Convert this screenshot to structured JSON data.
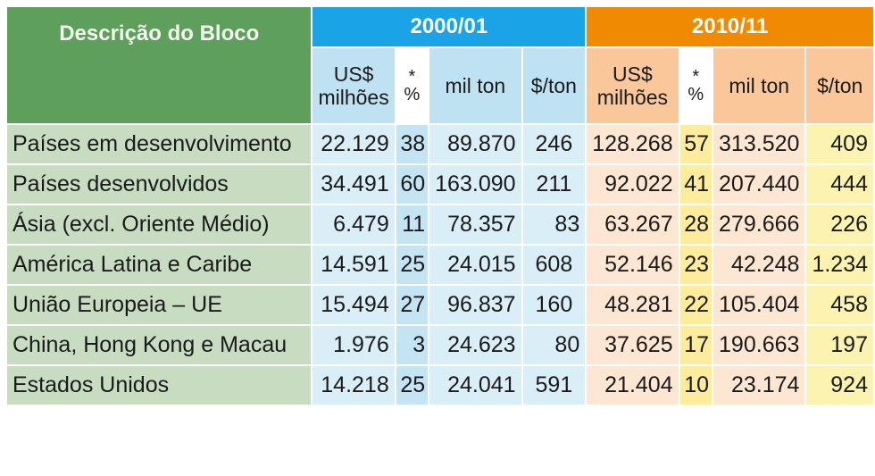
{
  "header": {
    "desc_col": "Descrição do Bloco",
    "group1": "2000/01",
    "group2": "2010/11",
    "sub": {
      "usd": "US$\nmilhões",
      "pct": "*\n%",
      "milton": "mil ton",
      "perton": "$/ton"
    }
  },
  "rows": [
    {
      "desc": "Países em desenvolvimento",
      "usd1": "22.129",
      "pct1": "38",
      "ton1": "89.870",
      "pt1": "246",
      "usd2": "128.268",
      "pct2": "57",
      "ton2": "313.520",
      "pt2": "409"
    },
    {
      "desc": "Países desenvolvidos",
      "usd1": "34.491",
      "pct1": "60",
      "ton1": "163.090",
      "pt1": "211",
      "usd2": "92.022",
      "pct2": "41",
      "ton2": "207.440",
      "pt2": "444"
    },
    {
      "desc": "Ásia (excl. Oriente Médio)",
      "usd1": "6.479",
      "pct1": "11",
      "ton1": "78.357",
      "pt1": "83",
      "usd2": "63.267",
      "pct2": "28",
      "ton2": "279.666",
      "pt2": "226"
    },
    {
      "desc": "América Latina e Caribe",
      "usd1": "14.591",
      "pct1": "25",
      "ton1": "24.015",
      "pt1": "608",
      "usd2": "52.146",
      "pct2": "23",
      "ton2": "42.248",
      "pt2": "1.234"
    },
    {
      "desc": "União Europeia – UE",
      "usd1": "15.494",
      "pct1": "27",
      "ton1": "96.837",
      "pt1": "160",
      "usd2": "48.281",
      "pct2": "22",
      "ton2": "105.404",
      "pt2": "458"
    },
    {
      "desc": "China, Hong Kong e Macau",
      "usd1": "1.976",
      "pct1": "3",
      "ton1": "24.623",
      "pt1": "80",
      "usd2": "37.625",
      "pct2": "17",
      "ton2": "190.663",
      "pt2": "197"
    },
    {
      "desc": "Estados Unidos",
      "usd1": "14.218",
      "pct1": "25",
      "ton1": "24.041",
      "pt1": "591",
      "usd2": "21.404",
      "pct2": "10",
      "ton2": "23.174",
      "pt2": "924"
    }
  ],
  "colors": {
    "desc_header": "#5e9f5b",
    "desc_cells": "#c7dcc1",
    "group1": "#1aa3e6",
    "group2": "#f08a00",
    "blue_cells": "#daeef8",
    "orange_cells": "#fde7d3",
    "yellow_cells": "#fcec9c"
  }
}
